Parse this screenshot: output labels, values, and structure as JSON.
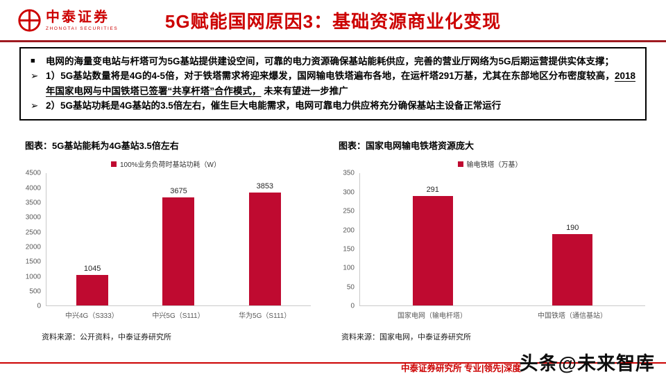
{
  "colors": {
    "accent": "#cc0000",
    "bar": "#bf0a30",
    "rule": "#9e1a20"
  },
  "header": {
    "logo_cn": "中泰证券",
    "logo_en": "ZHONGTAI SECURITIES",
    "title": "5G赋能国网原因3：基础资源商业化变现"
  },
  "summary": {
    "marker_square": "■",
    "marker_arrow": "➢",
    "bullet1": "电网的海量变电站与杆塔可为5G基站提供建设空间，可靠的电力资源确保基站能耗供应，完善的营业厅网络为5G后期运营提供实体支撑；",
    "bullet2_pre": "1）5G基站数量将是4G的4-5倍，对于铁塔需求将迎来爆发，国网输电铁塔遍布各地，在运杆塔291万基，尤其在东部地区分布密度较高，",
    "bullet2_underlined": "2018年国家电网与中国铁塔已签署“共享杆塔”合作模式，",
    "bullet2_post": " 未来有望进一步推广",
    "bullet3": "2）5G基站功耗是4G基站的3.5倍左右，催生巨大电能需求，电网可靠电力供应将充分确保基站主设备正常运行"
  },
  "chart_data": [
    {
      "type": "bar",
      "title": "图表：5G基站能耗为4G基站3.5倍左右",
      "legend": "100%业务负荷时基站功耗（W）",
      "categories": [
        "中兴4G（S333）",
        "中兴5G（S111）",
        "华为5G（S111）"
      ],
      "values": [
        1045,
        3675,
        3853
      ],
      "xlabel": "",
      "ylabel": "",
      "ylim": [
        0,
        4500
      ],
      "ytick": 500,
      "grid": false,
      "legend_position": "top-center",
      "source": "资料来源：公开资料，中泰证券研究所"
    },
    {
      "type": "bar",
      "title": "图表：国家电网输电铁塔资源庞大",
      "legend": "输电铁塔（万基）",
      "categories": [
        "国家电网（输电杆塔）",
        "中国铁塔（通信基站）"
      ],
      "values": [
        291,
        190
      ],
      "xlabel": "",
      "ylabel": "",
      "ylim": [
        0,
        350
      ],
      "ytick": 50,
      "grid": false,
      "legend_position": "top-center",
      "source": "资料来源：国家电网，中泰证券研究所"
    }
  ],
  "footer": {
    "text": "中泰证券研究所 专业|领先|深度",
    "watermark": "头条@未来智库"
  }
}
